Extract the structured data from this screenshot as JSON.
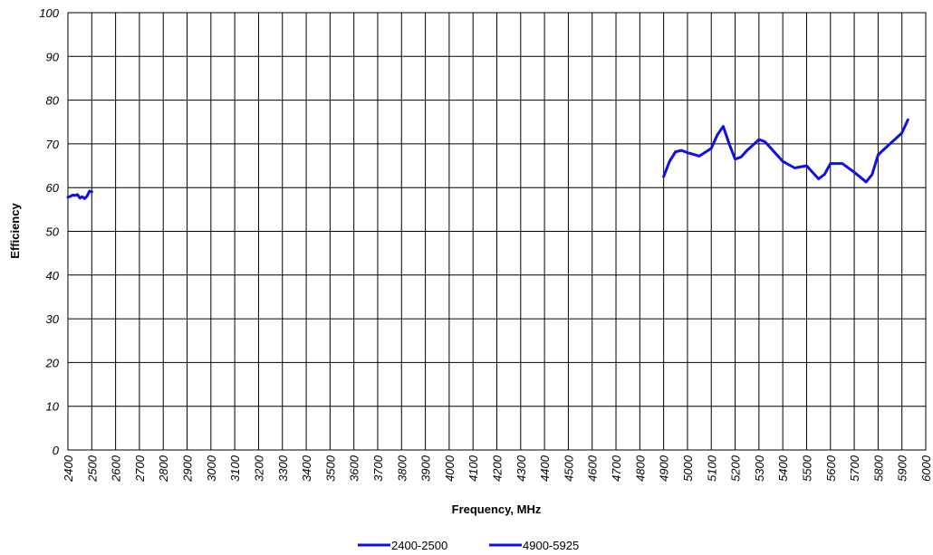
{
  "chart_data": {
    "type": "line",
    "xlabel": "Frequency, MHz",
    "ylabel": "Efficiency",
    "xlim": [
      2400,
      6000
    ],
    "ylim": [
      0,
      100
    ],
    "xticks": [
      2400,
      2500,
      2600,
      2700,
      2800,
      2900,
      3000,
      3100,
      3200,
      3300,
      3400,
      3500,
      3600,
      3700,
      3800,
      3900,
      4000,
      4100,
      4200,
      4300,
      4400,
      4500,
      4600,
      4700,
      4800,
      4900,
      5000,
      5100,
      5200,
      5300,
      5400,
      5500,
      5600,
      5700,
      5800,
      5900,
      6000
    ],
    "yticks": [
      0,
      10,
      20,
      30,
      40,
      50,
      60,
      70,
      80,
      90,
      100
    ],
    "grid": true,
    "legend": "bottom",
    "series": [
      {
        "name": "2400-2500",
        "color": "#0f0fe6",
        "x": [
          2400,
          2410,
          2420,
          2430,
          2440,
          2450,
          2460,
          2470,
          2480,
          2490,
          2500
        ],
        "values": [
          57.8,
          58,
          58.3,
          58.2,
          58.4,
          57.6,
          57.9,
          57.5,
          58,
          59.2,
          59
        ]
      },
      {
        "name": "4900-5925",
        "color": "#0f0fe6",
        "x": [
          4900,
          4925,
          4950,
          4975,
          5000,
          5050,
          5100,
          5125,
          5150,
          5175,
          5200,
          5225,
          5250,
          5300,
          5325,
          5350,
          5400,
          5450,
          5500,
          5550,
          5575,
          5600,
          5650,
          5700,
          5750,
          5775,
          5800,
          5850,
          5900,
          5925
        ],
        "values": [
          62.5,
          66,
          68.2,
          68.5,
          68,
          67.2,
          69,
          72,
          74,
          70,
          66.5,
          67,
          68.5,
          71,
          70.5,
          69,
          66,
          64.5,
          65,
          62,
          63,
          65.5,
          65.5,
          63.5,
          61.3,
          63,
          67.5,
          70,
          72.5,
          75.5
        ]
      }
    ]
  }
}
